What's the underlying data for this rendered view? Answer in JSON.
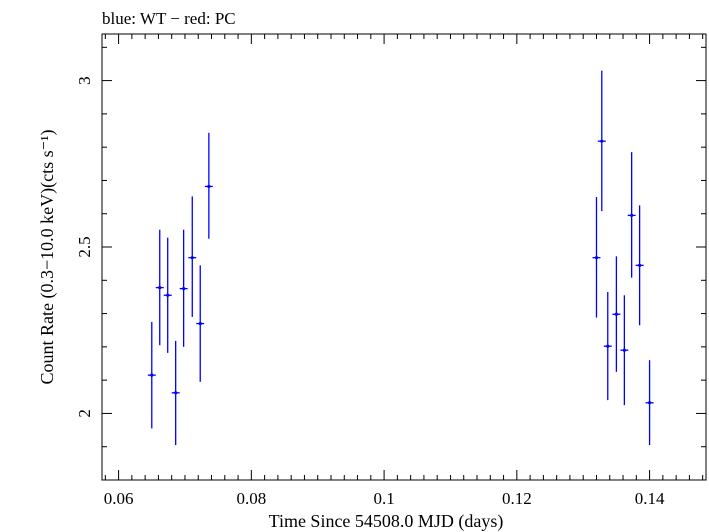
{
  "chart_data": {
    "type": "scatter",
    "title": "blue: WT − red: PC",
    "xlabel": "Time Since 54508.0 MJD (days)",
    "ylabel": "Count Rate (0.3−10.0 keV)(cts s⁻¹)",
    "xlim": [
      0.0575,
      0.1485
    ],
    "ylim": [
      1.8,
      3.14
    ],
    "x_ticks": [
      0.06,
      0.08,
      0.1,
      0.12,
      0.14
    ],
    "x_tick_labels": [
      "0.06",
      "0.08",
      "0.1",
      "0.12",
      "0.14"
    ],
    "y_ticks": [
      2,
      2.5,
      3
    ],
    "y_tick_labels": [
      "2",
      "2.5",
      "3"
    ],
    "grid": false,
    "series": [
      {
        "color": "#0000ff",
        "points": [
          {
            "x": 0.065,
            "y": 2.115,
            "xerr": 0.0006,
            "ylo": 1.955,
            "yhi": 2.275
          },
          {
            "x": 0.0662,
            "y": 2.378,
            "xerr": 0.0006,
            "ylo": 2.205,
            "yhi": 2.552
          },
          {
            "x": 0.0674,
            "y": 2.355,
            "xerr": 0.0006,
            "ylo": 2.182,
            "yhi": 2.528
          },
          {
            "x": 0.0686,
            "y": 2.062,
            "xerr": 0.0006,
            "ylo": 1.905,
            "yhi": 2.218
          },
          {
            "x": 0.0698,
            "y": 2.375,
            "xerr": 0.0006,
            "ylo": 2.2,
            "yhi": 2.552
          },
          {
            "x": 0.0711,
            "y": 2.468,
            "xerr": 0.0006,
            "ylo": 2.29,
            "yhi": 2.652
          },
          {
            "x": 0.0723,
            "y": 2.27,
            "xerr": 0.0006,
            "ylo": 2.095,
            "yhi": 2.445
          },
          {
            "x": 0.0736,
            "y": 2.682,
            "xerr": 0.0006,
            "ylo": 2.525,
            "yhi": 2.843
          },
          {
            "x": 0.132,
            "y": 2.468,
            "xerr": 0.0006,
            "ylo": 2.288,
            "yhi": 2.65
          },
          {
            "x": 0.1328,
            "y": 2.818,
            "xerr": 0.0006,
            "ylo": 2.608,
            "yhi": 3.03
          },
          {
            "x": 0.1337,
            "y": 2.202,
            "xerr": 0.0006,
            "ylo": 2.04,
            "yhi": 2.365
          },
          {
            "x": 0.135,
            "y": 2.298,
            "xerr": 0.0006,
            "ylo": 2.125,
            "yhi": 2.472
          },
          {
            "x": 0.1362,
            "y": 2.19,
            "xerr": 0.0006,
            "ylo": 2.025,
            "yhi": 2.355
          },
          {
            "x": 0.1373,
            "y": 2.595,
            "xerr": 0.0006,
            "ylo": 2.408,
            "yhi": 2.785
          },
          {
            "x": 0.1385,
            "y": 2.445,
            "xerr": 0.0006,
            "ylo": 2.265,
            "yhi": 2.625
          },
          {
            "x": 0.14,
            "y": 2.032,
            "xerr": 0.0006,
            "ylo": 1.905,
            "yhi": 2.16
          }
        ]
      }
    ]
  }
}
